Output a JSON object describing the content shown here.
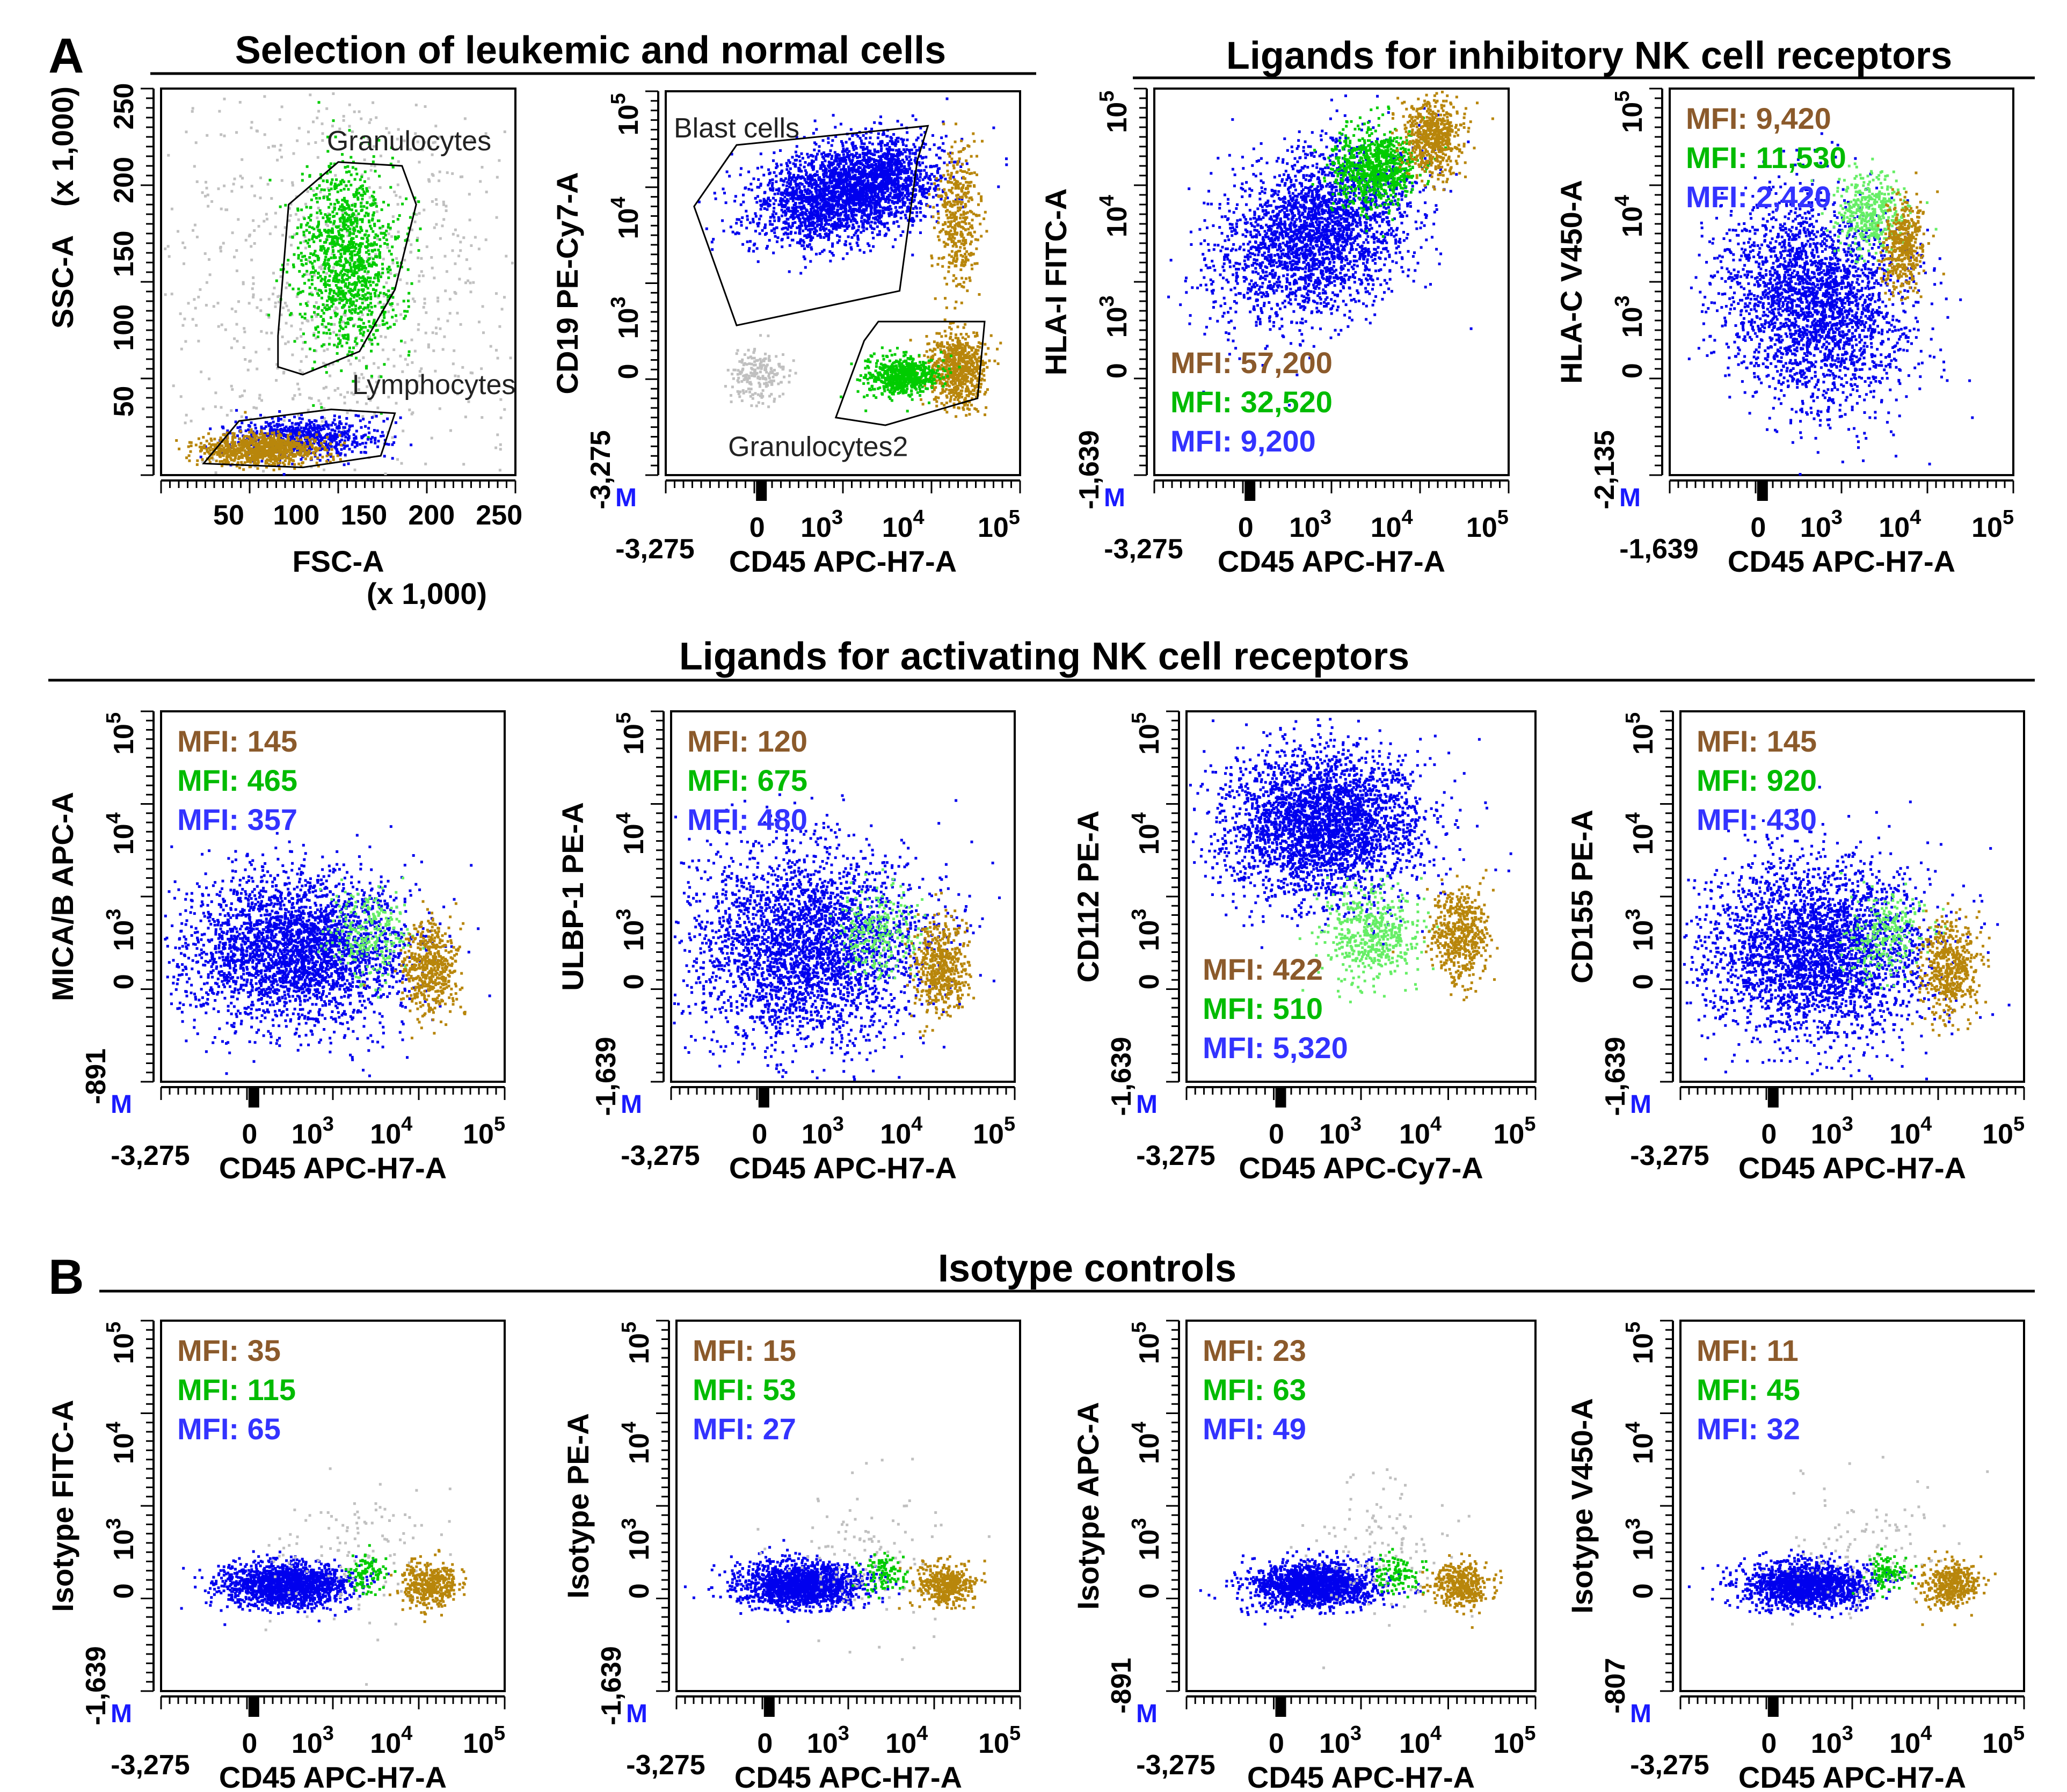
{
  "colors": {
    "leukemic": "#b8860b",
    "granulocytes": "#00cc00",
    "granulocytes_light": "#66ee66",
    "blasts": "#0000ee",
    "other": "#c0c0c0",
    "mfi_brown": "#8b5a2b",
    "mfi_green": "#00bb00",
    "mfi_blue": "#3333ff"
  },
  "labels": {
    "panel_a": "A",
    "panel_b": "B",
    "m_marker": "M"
  },
  "section_titles": {
    "selection": "Selection of leukemic and normal cells",
    "inhibitory": "Ligands for inhibitory NK cell receptors",
    "activating": "Ligands for activating NK cell receptors",
    "isotype": "Isotype controls"
  },
  "chart_data": [
    {
      "id": "p1",
      "type": "scatter",
      "scale": "linear",
      "xlabel": "FSC-A",
      "xlabel2": "(x 1,000)",
      "ylabel": "SSC-A",
      "ylabel2": "(x 1,000)",
      "x_ticks": [
        "50",
        "100",
        "150",
        "200",
        "250"
      ],
      "y_ticks": [
        "50",
        "100",
        "150",
        "200",
        "250"
      ],
      "xlim": [
        0,
        262
      ],
      "ylim": [
        0,
        262
      ],
      "gates": [
        "Granulocytes",
        "Lymphocytes"
      ]
    },
    {
      "id": "p2",
      "type": "scatter",
      "scale": "biexponential",
      "xlabel": "CD45 APC-H7-A",
      "ylabel": "CD19 PE-Cy7-A",
      "x_ticks": [
        "-3,275",
        "0",
        "10^3",
        "10^4",
        "10^5"
      ],
      "y_ticks": [
        "-3,275",
        "0",
        "10^3",
        "10^4",
        "10^5"
      ],
      "gates": [
        "Blast cells",
        "Granulocytes2"
      ]
    },
    {
      "id": "p3",
      "type": "scatter",
      "scale": "biexponential",
      "xlabel": "CD45 APC-H7-A",
      "ylabel": "HLA-I FITC-A",
      "x_ticks": [
        "-3,275",
        "0",
        "10^3",
        "10^4",
        "10^5"
      ],
      "y_ticks": [
        "-1,639",
        "0",
        "10^3",
        "10^4",
        "10^5"
      ],
      "mfi": [
        "MFI: 57,200",
        "MFI: 32,520",
        "MFI: 9,200"
      ]
    },
    {
      "id": "p4",
      "type": "scatter",
      "scale": "biexponential",
      "xlabel": "CD45 APC-H7-A",
      "ylabel": "HLA-C V450-A",
      "x_ticks": [
        "-1,639",
        "0",
        "10^3",
        "10^4",
        "10^5"
      ],
      "y_ticks": [
        "-2,135",
        "0",
        "10^3",
        "10^4",
        "10^5"
      ],
      "mfi": [
        "MFI: 9,420",
        "MFI: 11,530",
        "MFI: 2,420"
      ]
    },
    {
      "id": "p5",
      "type": "scatter",
      "scale": "biexponential",
      "xlabel": "CD45 APC-H7-A",
      "ylabel": "MICA/B APC-A",
      "x_ticks": [
        "-3,275",
        "0",
        "10^3",
        "10^4",
        "10^5"
      ],
      "y_ticks": [
        "-891",
        "0",
        "10^3",
        "10^4",
        "10^5"
      ],
      "mfi": [
        "MFI: 145",
        "MFI: 465",
        "MFI: 357"
      ]
    },
    {
      "id": "p6",
      "type": "scatter",
      "scale": "biexponential",
      "xlabel": "CD45 APC-H7-A",
      "ylabel": "ULBP-1 PE-A",
      "x_ticks": [
        "-3,275",
        "0",
        "10^3",
        "10^4",
        "10^5"
      ],
      "y_ticks": [
        "-1,639",
        "0",
        "10^3",
        "10^4",
        "10^5"
      ],
      "mfi": [
        "MFI: 120",
        "MFI: 675",
        "MFI: 480"
      ]
    },
    {
      "id": "p7",
      "type": "scatter",
      "scale": "biexponential",
      "xlabel": "CD45 APC-Cy7-A",
      "ylabel": "CD112 PE-A",
      "x_ticks": [
        "-3,275",
        "0",
        "10^3",
        "10^4",
        "10^5"
      ],
      "y_ticks": [
        "-1,639",
        "0",
        "10^3",
        "10^4",
        "10^5"
      ],
      "mfi": [
        "MFI: 422",
        "MFI: 510",
        "MFI: 5,320"
      ]
    },
    {
      "id": "p8",
      "type": "scatter",
      "scale": "biexponential",
      "xlabel": "CD45 APC-H7-A",
      "ylabel": "CD155 PE-A",
      "x_ticks": [
        "-3,275",
        "0",
        "10^3",
        "10^4",
        "10^5"
      ],
      "y_ticks": [
        "-1,639",
        "0",
        "10^3",
        "10^4",
        "10^5"
      ],
      "mfi": [
        "MFI: 145",
        "MFI: 920",
        "MFI: 430"
      ]
    },
    {
      "id": "p9",
      "type": "scatter",
      "scale": "biexponential",
      "xlabel": "CD45 APC-H7-A",
      "ylabel": "Isotype FITC-A",
      "x_ticks": [
        "-3,275",
        "0",
        "10^3",
        "10^4",
        "10^5"
      ],
      "y_ticks": [
        "-1,639",
        "0",
        "10^3",
        "10^4",
        "10^5"
      ],
      "mfi": [
        "MFI: 35",
        "MFI: 115",
        "MFI: 65"
      ]
    },
    {
      "id": "p10",
      "type": "scatter",
      "scale": "biexponential",
      "xlabel": "CD45 APC-H7-A",
      "ylabel": "Isotype PE-A",
      "x_ticks": [
        "-3,275",
        "0",
        "10^3",
        "10^4",
        "10^5"
      ],
      "y_ticks": [
        "-1,639",
        "0",
        "10^3",
        "10^4",
        "10^5"
      ],
      "mfi": [
        "MFI: 15",
        "MFI: 53",
        "MFI: 27"
      ]
    },
    {
      "id": "p11",
      "type": "scatter",
      "scale": "biexponential",
      "xlabel": "CD45 APC-H7-A",
      "ylabel": "Isotype APC-A",
      "x_ticks": [
        "-3,275",
        "0",
        "10^3",
        "10^4",
        "10^5"
      ],
      "y_ticks": [
        "-891",
        "0",
        "10^3",
        "10^4",
        "10^5"
      ],
      "mfi": [
        "MFI: 23",
        "MFI: 63",
        "MFI: 49"
      ]
    },
    {
      "id": "p12",
      "type": "scatter",
      "scale": "biexponential",
      "xlabel": "CD45 APC-H7-A",
      "ylabel": "Isotype V450-A",
      "x_ticks": [
        "-3,275",
        "0",
        "10^3",
        "10^4",
        "10^5"
      ],
      "y_ticks": [
        "-807",
        "0",
        "10^3",
        "10^4",
        "10^5"
      ],
      "mfi": [
        "MFI: 11",
        "MFI: 45",
        "MFI: 32"
      ]
    }
  ]
}
